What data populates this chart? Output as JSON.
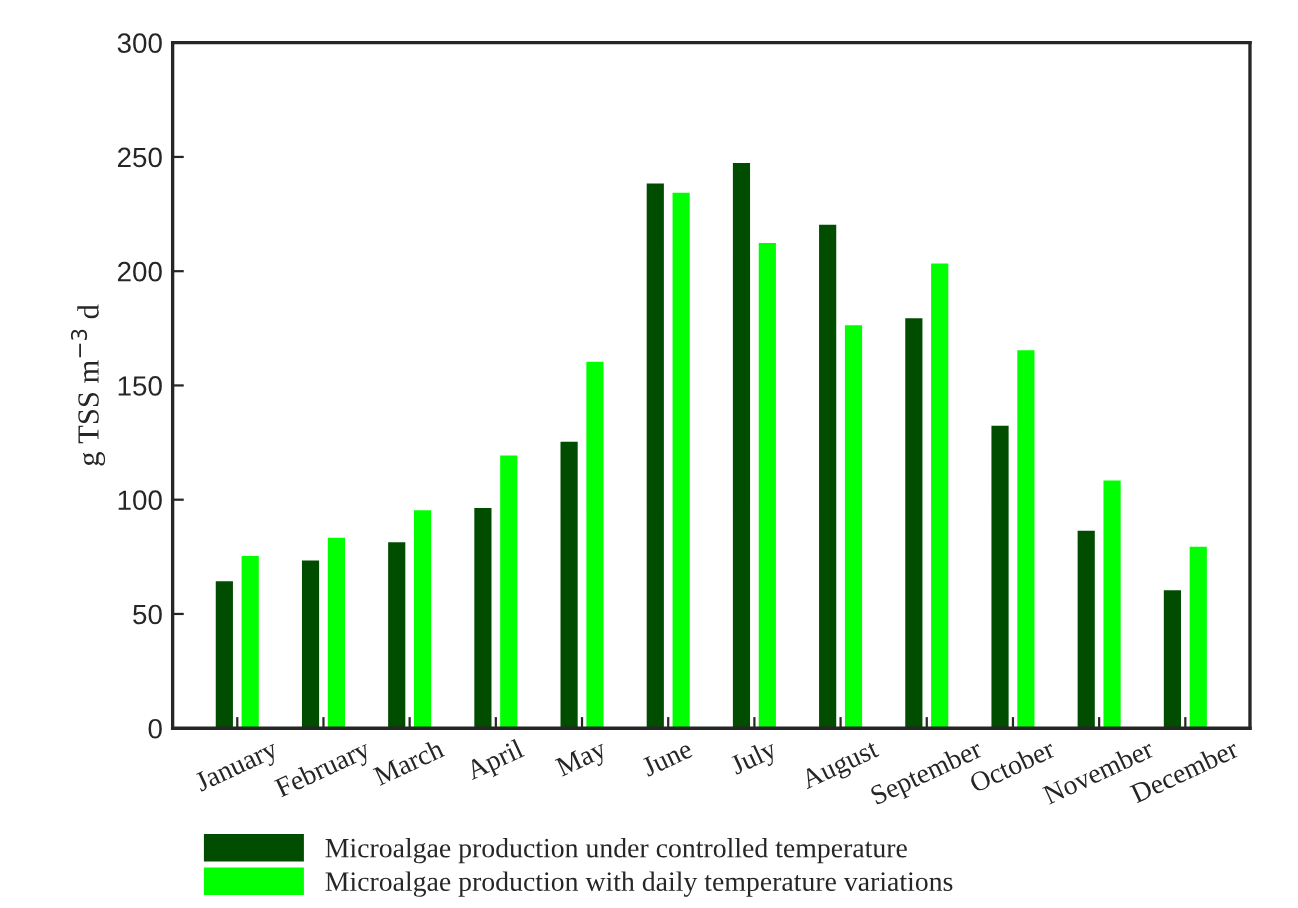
{
  "chart_data": {
    "type": "bar",
    "ylabel": "g TSS m$^{−3}$ d",
    "categories": [
      "January",
      "February",
      "March",
      "April",
      "May",
      "June",
      "July",
      "August",
      "September",
      "October",
      "November",
      "December"
    ],
    "series": [
      {
        "name": "Microalgae production under controlled temperature",
        "color": "#004d00",
        "values": [
          64,
          73,
          81,
          96,
          125,
          238,
          247,
          220,
          179,
          132,
          86,
          60
        ]
      },
      {
        "name": "Microalgae production with daily temperature variations",
        "color": "#00ff00",
        "values": [
          75,
          83,
          95,
          119,
          160,
          234,
          212,
          176,
          203,
          165,
          108,
          79
        ]
      }
    ],
    "ylim": [
      0,
      300
    ],
    "yticks": [
      0,
      50,
      100,
      150,
      200,
      250,
      300
    ],
    "grid": false,
    "legend": "bottom"
  }
}
